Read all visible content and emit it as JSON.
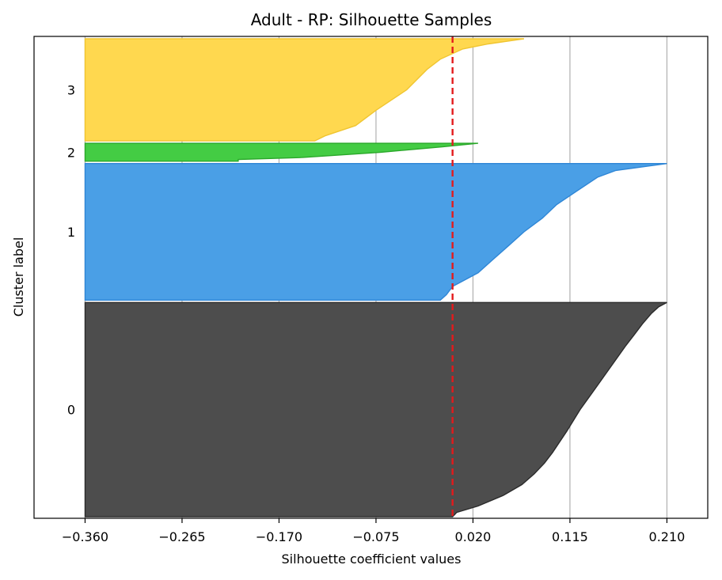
{
  "chart_data": {
    "type": "silhouette",
    "title": "Adult - RP: Silhouette Samples",
    "xlabel": "Silhouette coefficient values",
    "ylabel": "Cluster label",
    "xlim": [
      -0.41,
      0.25
    ],
    "xticks": [
      -0.36,
      -0.265,
      -0.17,
      -0.075,
      0.02,
      0.115,
      0.21
    ],
    "xtick_labels": [
      "−0.360",
      "−0.265",
      "−0.170",
      "−0.075",
      "0.020",
      "0.115",
      "0.210"
    ],
    "grid": "vertical",
    "mean_silhouette": -0.0,
    "mean_line_color": "#e31a1c",
    "clusters": [
      {
        "label": "0",
        "color": "#4d4d4d",
        "edge": "#2b2b2b",
        "size_share": 0.455,
        "profile": [
          [
            0.0,
            0.0
          ],
          [
            0.02,
            0.004
          ],
          [
            0.05,
            0.025
          ],
          [
            0.1,
            0.05
          ],
          [
            0.15,
            0.068
          ],
          [
            0.2,
            0.08
          ],
          [
            0.25,
            0.09
          ],
          [
            0.3,
            0.098
          ],
          [
            0.4,
            0.112
          ],
          [
            0.5,
            0.125
          ],
          [
            0.6,
            0.14
          ],
          [
            0.7,
            0.155
          ],
          [
            0.8,
            0.17
          ],
          [
            0.85,
            0.178
          ],
          [
            0.9,
            0.186
          ],
          [
            0.95,
            0.195
          ],
          [
            0.98,
            0.202
          ],
          [
            1.0,
            0.21
          ]
        ]
      },
      {
        "label": "1",
        "color": "#4a9fe6",
        "edge": "#2f86d6",
        "size_share": 0.29,
        "profile": [
          [
            0.0,
            -0.012
          ],
          [
            0.04,
            -0.006
          ],
          [
            0.1,
            0.0
          ],
          [
            0.2,
            0.025
          ],
          [
            0.3,
            0.04
          ],
          [
            0.4,
            0.055
          ],
          [
            0.5,
            0.07
          ],
          [
            0.6,
            0.088
          ],
          [
            0.7,
            0.102
          ],
          [
            0.8,
            0.122
          ],
          [
            0.9,
            0.142
          ],
          [
            0.95,
            0.16
          ],
          [
            1.0,
            0.21
          ]
        ]
      },
      {
        "label": "2",
        "color": "#44cc44",
        "edge": "#2aa82a",
        "size_share": 0.038,
        "profile": [
          [
            0.0,
            -0.21
          ],
          [
            0.1,
            -0.21
          ],
          [
            0.2,
            -0.15
          ],
          [
            0.5,
            -0.07
          ],
          [
            0.8,
            -0.01
          ],
          [
            1.0,
            0.025
          ]
        ]
      },
      {
        "label": "3",
        "color": "#ffd84f",
        "edge": "#f0c530",
        "size_share": 0.217,
        "profile": [
          [
            0.0,
            -0.135
          ],
          [
            0.05,
            -0.125
          ],
          [
            0.15,
            -0.095
          ],
          [
            0.3,
            -0.075
          ],
          [
            0.5,
            -0.045
          ],
          [
            0.7,
            -0.025
          ],
          [
            0.8,
            -0.012
          ],
          [
            0.9,
            0.01
          ],
          [
            0.95,
            0.035
          ],
          [
            1.0,
            0.07
          ]
        ]
      }
    ]
  }
}
